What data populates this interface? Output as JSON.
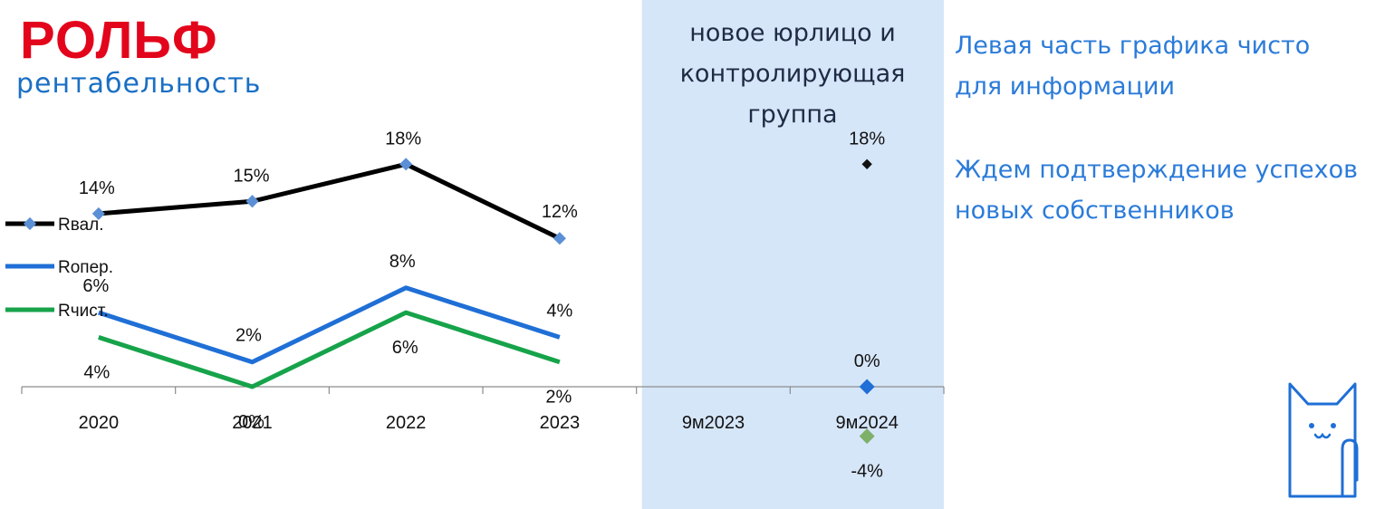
{
  "header": {
    "brand": "РОЛЬФ",
    "subtitle": "рентабельность"
  },
  "banner": {
    "lines": [
      "новое юрлицо и",
      "контролирующая",
      "группа"
    ]
  },
  "notes": [
    "Левая часть графика чисто для информации",
    "Ждем подтверждение успехов новых собственников"
  ],
  "colors": {
    "brand_red": "#e3051b",
    "brand_blue": "#1a6fc4",
    "note_blue": "#2b7bd9",
    "highlight": "#d6e6f9",
    "r_val": "#000000",
    "r_oper": "#1f6fd6",
    "r_net": "#16a34a",
    "marker": "#5b8fd6"
  },
  "icons": [
    "cat-icon"
  ],
  "chart_data": {
    "type": "line",
    "categories": [
      "2020",
      "2021",
      "2022",
      "2023",
      "9м2023",
      "9м2024"
    ],
    "ylim": [
      -4,
      18
    ],
    "highlight_range": [
      "9м2023",
      "9м2024"
    ],
    "series": [
      {
        "name": "Rвал.",
        "color": "#000000",
        "values": [
          14,
          15,
          18,
          12,
          null,
          18
        ],
        "labels": [
          "14%",
          "15%",
          "18%",
          "12%",
          "",
          "18%"
        ]
      },
      {
        "name": "Rопер.",
        "color": "#1f6fd6",
        "values": [
          6,
          2,
          8,
          4,
          null,
          0
        ],
        "labels": [
          "6%",
          "2%",
          "8%",
          "4%",
          "",
          "0%"
        ]
      },
      {
        "name": "Rчист.",
        "color": "#16a34a",
        "values": [
          4,
          0,
          6,
          2,
          null,
          -4
        ],
        "labels": [
          "4%",
          "0%",
          "6%",
          "2%",
          "",
          "-4%"
        ]
      }
    ]
  }
}
